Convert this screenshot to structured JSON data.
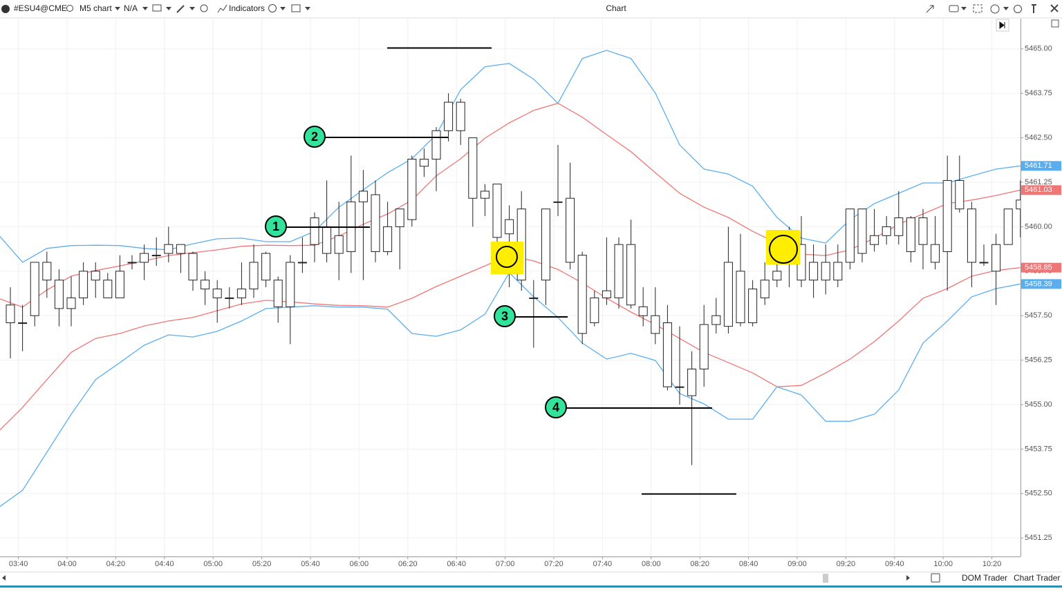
{
  "toolbar": {
    "symbol": "#ESU4@CME",
    "timeframe": "M5 chart",
    "account": "N/A",
    "indicators": "Indicators",
    "window_title": "Chart"
  },
  "footer": {
    "dom_trader": "DOM Trader",
    "chart_trader": "Chart Trader"
  },
  "chart_data": {
    "type": "candlestick",
    "title": "Chart",
    "categories": [
      null,
      "03:40",
      null,
      null,
      null,
      "04:00",
      null,
      null,
      null,
      "04:20",
      null,
      null,
      null,
      "04:40",
      null,
      null,
      null,
      "05:00",
      null,
      null,
      null,
      "05:20",
      null,
      null,
      null,
      "05:40",
      null,
      null,
      null,
      "06:00",
      null,
      null,
      null,
      "06:20",
      null,
      null,
      null,
      "06:40",
      null,
      null,
      null,
      "07:00",
      null,
      null,
      null,
      "07:20",
      null,
      null,
      null,
      "07:40",
      null,
      null,
      null,
      "08:00",
      null,
      null,
      null,
      "08:20",
      null,
      null,
      null,
      "08:40",
      null,
      null,
      null,
      "09:00",
      null,
      null,
      null,
      "09:20",
      null,
      null,
      null,
      "09:40",
      null,
      null,
      null,
      "10:00",
      null,
      null,
      null,
      "10:20",
      null,
      null
    ],
    "open": [
      5457.8,
      5457.3,
      5457.5,
      5459.0,
      5458.5,
      5457.7,
      5458.0,
      5458.75,
      5458.5,
      5458.0,
      5459.0,
      5459.0,
      5459.2,
      5459.25,
      5459.5,
      5459.25,
      5458.5,
      5458.25,
      5458.0,
      5458.0,
      5458.25,
      5458.5,
      5458.5,
      5457.75,
      5459.0,
      5459.5,
      5460.0,
      5459.25,
      5459.3,
      5460.7,
      5460.9,
      5459.3,
      5460.0,
      5460.2,
      5461.7,
      5461.9,
      5462.7,
      5463.5,
      5462.5,
      5460.8,
      5461.2,
      5459.8,
      5460.5,
      5458.0,
      5458.5,
      5460.7,
      5460.8,
      5459.2,
      5457.3,
      5458.2,
      5458.0,
      5459.5,
      5457.75,
      5457.5,
      5457.3,
      5455.5,
      5456.0,
      5456.0,
      5457.25,
      5457.2,
      5458.75,
      5457.3,
      5458.0,
      5458.5,
      5459.0,
      5459.5,
      5458.5,
      5459.0,
      5458.5,
      5459.0,
      5460.5,
      5459.5,
      5459.75,
      5460.25,
      5459.3,
      5460.25,
      5459.5,
      5459.3,
      5461.3,
      5460.5,
      5459.0,
      5458.75,
      5459.5,
      5460.5
    ],
    "close": [
      5457.3,
      5457.3,
      5459.0,
      5458.5,
      5457.7,
      5458.0,
      5458.75,
      5458.5,
      5458.0,
      5458.75,
      5459.0,
      5459.25,
      5459.2,
      5459.5,
      5459.25,
      5458.5,
      5458.25,
      5458.0,
      5458.0,
      5458.25,
      5459.0,
      5459.25,
      5457.75,
      5459.0,
      5459.0,
      5460.25,
      5459.25,
      5459.75,
      5460.7,
      5461.0,
      5459.3,
      5460.0,
      5460.5,
      5461.9,
      5461.9,
      5462.7,
      5463.5,
      5462.7,
      5460.8,
      5461.0,
      5459.7,
      5460.2,
      5458.5,
      5458.0,
      5460.5,
      5460.7,
      5459.0,
      5457.0,
      5458.0,
      5458.0,
      5459.5,
      5457.8,
      5457.5,
      5457.0,
      5455.5,
      5455.5,
      5455.25,
      5457.25,
      5457.5,
      5459.0,
      5457.3,
      5458.25,
      5458.5,
      5458.75,
      5459.25,
      5458.5,
      5459.0,
      5458.5,
      5459.0,
      5460.5,
      5459.25,
      5459.75,
      5460.0,
      5459.75,
      5460.25,
      5459.5,
      5459.0,
      5461.3,
      5460.5,
      5459.0,
      5459.0,
      5459.5,
      5460.5,
      5460.75
    ],
    "high": [
      5458.3,
      5457.8,
      5459.0,
      5459.3,
      5458.8,
      5458.6,
      5459.0,
      5459.0,
      5458.7,
      5459.2,
      5459.2,
      5459.5,
      5459.7,
      5460.0,
      5459.5,
      5459.3,
      5458.75,
      5458.5,
      5458.3,
      5459.0,
      5459.5,
      5459.3,
      5458.6,
      5459.2,
      5459.7,
      5460.4,
      5461.3,
      5460.7,
      5462.0,
      5461.6,
      5461.3,
      5460.7,
      5460.5,
      5462.0,
      5462.2,
      5462.8,
      5463.75,
      5463.6,
      5462.5,
      5461.2,
      5461.2,
      5460.6,
      5461.0,
      5458.5,
      5460.5,
      5462.3,
      5461.8,
      5459.3,
      5458.2,
      5459.7,
      5459.7,
      5460.2,
      5458.3,
      5458.3,
      5457.8,
      5457.2,
      5456.5,
      5457.8,
      5458.0,
      5460.0,
      5459.8,
      5458.5,
      5459.0,
      5459.3,
      5460.0,
      5460.3,
      5459.5,
      5459.5,
      5459.5,
      5460.5,
      5460.5,
      5460.5,
      5460.3,
      5461.0,
      5460.3,
      5460.5,
      5460.3,
      5462.0,
      5462.0,
      5460.7,
      5459.5,
      5459.8,
      5460.5,
      5461.3
    ],
    "low": [
      5456.3,
      5456.5,
      5457.2,
      5458.0,
      5457.2,
      5457.2,
      5457.8,
      5458.0,
      5458.0,
      5458.0,
      5458.8,
      5458.5,
      5458.9,
      5459.0,
      5458.7,
      5458.2,
      5457.8,
      5457.3,
      5457.7,
      5457.8,
      5458.0,
      5458.3,
      5457.3,
      5456.7,
      5458.7,
      5459.0,
      5459.0,
      5458.5,
      5458.7,
      5458.5,
      5459.0,
      5459.2,
      5458.8,
      5460.0,
      5461.4,
      5461.0,
      5462.4,
      5462.3,
      5460.0,
      5460.3,
      5459.4,
      5458.3,
      5458.2,
      5456.6,
      5457.8,
      5460.3,
      5458.8,
      5456.7,
      5457.2,
      5457.8,
      5457.7,
      5457.7,
      5457.2,
      5456.7,
      5455.4,
      5455.0,
      5453.3,
      5455.5,
      5457.0,
      5457.0,
      5457.2,
      5457.2,
      5457.8,
      5458.3,
      5458.3,
      5458.3,
      5458.0,
      5458.1,
      5458.3,
      5458.8,
      5459.0,
      5459.3,
      5459.5,
      5459.5,
      5459.0,
      5458.8,
      5458.8,
      5458.2,
      5460.4,
      5458.3,
      5458.9,
      5457.8,
      5459.5,
      5459.7
    ],
    "series": [
      {
        "color": "#5aaef0",
        "x": [
          "03:30",
          "03:40",
          "03:50",
          "04:00",
          "04:10",
          "04:20",
          "04:30",
          "04:40",
          "04:50",
          "05:00",
          "05:10",
          "05:20",
          "05:30",
          "05:40",
          "05:50",
          "06:00",
          "06:10",
          "06:20",
          "06:30",
          "06:40",
          "06:50",
          "07:00",
          "07:10",
          "07:20",
          "07:30",
          "07:40",
          "07:50",
          "08:00",
          "08:10",
          "08:20",
          "08:30",
          "08:40",
          "08:50",
          "09:00",
          "09:10",
          "09:20",
          "09:30",
          "09:40",
          "09:50",
          "10:00",
          "10:10",
          "10:20",
          "10:30"
        ],
        "values": [
          5459.78,
          5459.0,
          5459.39,
          5459.47,
          5459.48,
          5459.47,
          5459.39,
          5459.35,
          5459.52,
          5459.66,
          5459.68,
          5459.58,
          5459.58,
          5459.87,
          5460.55,
          5461.04,
          5461.52,
          5461.91,
          5462.59,
          5463.85,
          5464.5,
          5464.59,
          5464.15,
          5463.47,
          5464.73,
          5464.96,
          5464.73,
          5463.76,
          5462.3,
          5461.62,
          5461.48,
          5461.14,
          5460.26,
          5459.68,
          5459.54,
          5460.2,
          5460.65,
          5460.94,
          5461.23,
          5461.23,
          5461.43,
          5461.62,
          5461.71
        ]
      },
      {
        "color": "#f07575",
        "x": [
          "03:30",
          "03:40",
          "03:50",
          "04:00",
          "04:10",
          "04:20",
          "04:30",
          "04:40",
          "04:50",
          "05:00",
          "05:10",
          "05:20",
          "05:30",
          "05:40",
          "05:50",
          "06:00",
          "06:10",
          "06:20",
          "06:30",
          "06:40",
          "06:50",
          "07:00",
          "07:10",
          "07:20",
          "07:30",
          "07:40",
          "07:50",
          "08:00",
          "08:10",
          "08:20",
          "08:30",
          "08:40",
          "08:50",
          "09:00",
          "09:10",
          "09:20",
          "09:30",
          "09:40",
          "09:50",
          "10:00",
          "10:10",
          "10:20",
          "10:30"
        ],
        "values": [
          5457.99,
          5457.74,
          5458.22,
          5458.61,
          5458.77,
          5458.9,
          5459.04,
          5459.19,
          5459.27,
          5459.35,
          5459.45,
          5459.48,
          5459.47,
          5459.48,
          5459.74,
          5460.07,
          5460.36,
          5460.75,
          5461.43,
          5461.91,
          5462.49,
          5462.92,
          5463.27,
          5463.47,
          5463.08,
          5462.59,
          5462.11,
          5461.52,
          5460.94,
          5460.55,
          5460.26,
          5459.87,
          5459.54,
          5459.23,
          5459.19,
          5459.35,
          5459.68,
          5460.07,
          5460.36,
          5460.65,
          5460.75,
          5460.88,
          5461.03
        ]
      },
      {
        "color": "#f07575",
        "x": [
          "03:30",
          "03:40",
          "03:50",
          "04:00",
          "04:10",
          "04:20",
          "04:30",
          "04:40",
          "04:50",
          "05:00",
          "05:10",
          "05:20",
          "05:30",
          "05:40",
          "05:50",
          "06:00",
          "06:10",
          "06:20",
          "06:30",
          "06:40",
          "06:50",
          "07:00",
          "07:10",
          "07:20",
          "07:30",
          "07:40",
          "07:50",
          "08:00",
          "08:10",
          "08:20",
          "08:30",
          "08:40",
          "08:50",
          "09:00",
          "09:10",
          "09:20",
          "09:30",
          "09:40",
          "09:50",
          "10:00",
          "10:10",
          "10:20",
          "10:30"
        ],
        "values": [
          5454.24,
          5454.92,
          5455.7,
          5456.47,
          5456.86,
          5457.0,
          5457.21,
          5457.35,
          5457.45,
          5457.64,
          5457.83,
          5457.93,
          5457.89,
          5457.83,
          5457.79,
          5457.78,
          5457.74,
          5457.99,
          5458.32,
          5458.61,
          5458.9,
          5459.19,
          5459.04,
          5458.8,
          5458.42,
          5457.99,
          5457.6,
          5457.25,
          5456.86,
          5456.47,
          5456.18,
          5455.89,
          5455.5,
          5455.54,
          5455.89,
          5456.28,
          5456.77,
          5457.35,
          5457.99,
          5458.26,
          5458.61,
          5458.77,
          5458.85
        ]
      },
      {
        "color": "#5aaef0",
        "x": [
          "03:30",
          "03:40",
          "03:50",
          "04:00",
          "04:10",
          "04:20",
          "04:30",
          "04:40",
          "04:50",
          "05:00",
          "05:10",
          "05:20",
          "05:30",
          "05:40",
          "05:50",
          "06:00",
          "06:10",
          "06:20",
          "06:30",
          "06:40",
          "06:50",
          "07:00",
          "07:10",
          "07:20",
          "07:30",
          "07:40",
          "07:50",
          "08:00",
          "08:10",
          "08:20",
          "08:30",
          "08:40",
          "08:50",
          "09:00",
          "09:10",
          "09:20",
          "09:30",
          "09:40",
          "09:50",
          "10:00",
          "10:10",
          "10:20",
          "10:30"
        ],
        "values": [
          5452.1,
          5452.59,
          5453.66,
          5454.73,
          5455.7,
          5456.18,
          5456.67,
          5456.96,
          5456.9,
          5457.06,
          5457.35,
          5457.7,
          5457.74,
          5457.78,
          5457.74,
          5457.74,
          5457.68,
          5457.0,
          5456.92,
          5457.1,
          5457.54,
          5458.71,
          5458.03,
          5457.45,
          5456.73,
          5456.28,
          5456.44,
          5456.24,
          5455.31,
          5455.02,
          5454.59,
          5454.59,
          5455.5,
          5455.27,
          5454.53,
          5454.53,
          5454.73,
          5455.41,
          5456.73,
          5457.35,
          5458.03,
          5458.26,
          5458.39
        ]
      }
    ],
    "ylim": [
      5450.73,
      5465.85
    ],
    "yticks": [
      5451.25,
      {
        "value": 5452.5,
        "label": "5452.50"
      },
      5453.75,
      {
        "value": 5455,
        "label": "5455.00"
      },
      5456.25,
      {
        "value": 5457.5,
        "label": "5457.50"
      },
      5458.75,
      {
        "value": 5460,
        "label": "5460.00"
      },
      5461.25,
      {
        "value": 5462.5,
        "label": "5462.50"
      },
      5463.75,
      {
        "value": 5465,
        "label": "5465.00"
      }
    ],
    "grid": true,
    "annotations": [
      "1",
      "2",
      "3",
      "4"
    ]
  }
}
